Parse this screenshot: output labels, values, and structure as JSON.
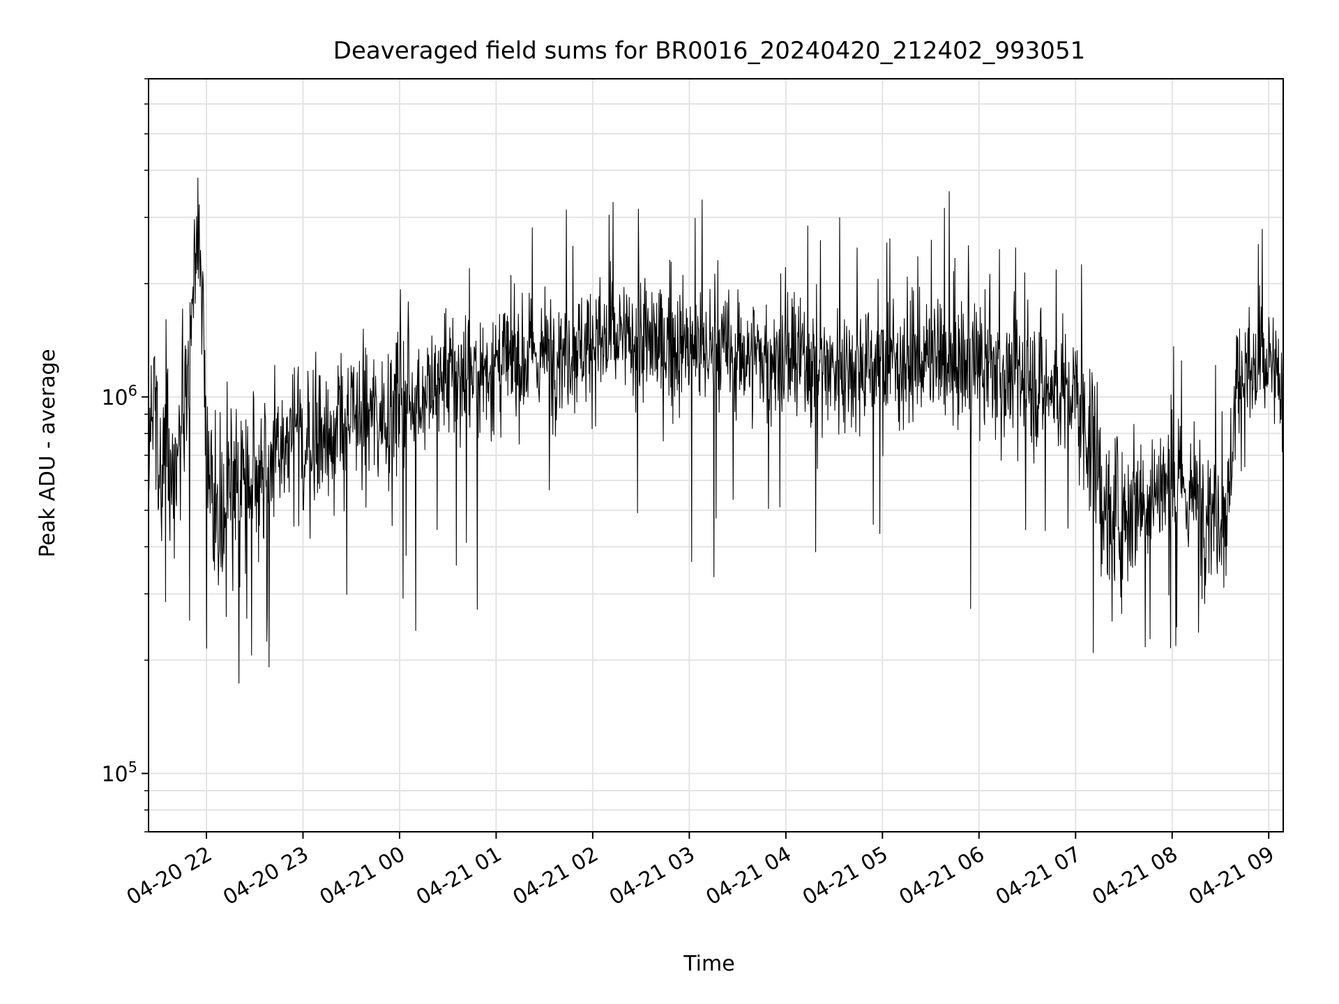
{
  "chart_data": {
    "type": "line",
    "title": "Deaveraged field sums for BR0016_20240420_212402_993051",
    "xlabel": "Time",
    "ylabel": "Peak ADU - average",
    "xlim": [
      "2024-04-20 21:24:02",
      "2024-04-21 09:09:00"
    ],
    "ylim": [
      70000,
      7000000
    ],
    "yscale": "log",
    "grid": true,
    "line_color": "#000000",
    "x_ticks": [
      "04-20 22",
      "04-20 23",
      "04-21 00",
      "04-21 01",
      "04-21 02",
      "04-21 03",
      "04-21 04",
      "04-21 05",
      "04-21 06",
      "04-21 07",
      "04-21 08",
      "04-21 09"
    ],
    "x_tick_times": [
      "2024-04-20 22:00",
      "2024-04-20 23:00",
      "2024-04-21 00:00",
      "2024-04-21 01:00",
      "2024-04-21 02:00",
      "2024-04-21 03:00",
      "2024-04-21 04:00",
      "2024-04-21 05:00",
      "2024-04-21 06:00",
      "2024-04-21 07:00",
      "2024-04-21 08:00",
      "2024-04-21 09:00"
    ],
    "y_ticks": [
      {
        "value": 100000,
        "base": "10",
        "exp": "5"
      },
      {
        "value": 1000000,
        "base": "10",
        "exp": "6"
      }
    ],
    "series": [
      {
        "values_note_free": true,
        "x": [
          "2024-04-20 21:24",
          "2024-04-20 21:40",
          "2024-04-20 21:50",
          "2024-04-20 21:55",
          "2024-04-20 22:00",
          "2024-04-20 22:10",
          "2024-04-20 22:30",
          "2024-04-20 23:00",
          "2024-04-20 23:30",
          "2024-04-21 00:00",
          "2024-04-21 00:30",
          "2024-04-21 01:00",
          "2024-04-21 01:30",
          "2024-04-21 02:00",
          "2024-04-21 02:30",
          "2024-04-21 03:00",
          "2024-04-21 03:30",
          "2024-04-21 04:00",
          "2024-04-21 04:30",
          "2024-04-21 05:00",
          "2024-04-21 05:30",
          "2024-04-21 06:00",
          "2024-04-21 06:30",
          "2024-04-21 07:00",
          "2024-04-21 07:10",
          "2024-04-21 07:20",
          "2024-04-21 07:40",
          "2024-04-21 08:00",
          "2024-04-21 08:20",
          "2024-04-21 08:35",
          "2024-04-21 08:40",
          "2024-04-21 09:00",
          "2024-04-21 09:09"
        ],
        "values": [
          1000000,
          600000,
          1300000,
          3000000,
          600000,
          500000,
          650000,
          750000,
          850000,
          950000,
          1100000,
          1200000,
          1300000,
          1400000,
          1400000,
          1350000,
          1300000,
          1250000,
          1200000,
          1250000,
          1250000,
          1200000,
          1100000,
          1000000,
          750000,
          450000,
          550000,
          580000,
          520000,
          500000,
          1100000,
          1200000,
          1000000
        ],
        "spread": [
          1.9,
          2.2,
          2.0,
          1.7,
          2.0,
          2.0,
          1.8,
          1.8,
          1.75,
          1.7,
          1.7,
          1.65,
          1.65,
          1.65,
          1.65,
          1.65,
          1.65,
          1.65,
          1.65,
          1.65,
          1.65,
          1.7,
          1.7,
          1.7,
          1.9,
          2.0,
          1.8,
          1.7,
          1.8,
          1.8,
          1.7,
          1.7,
          1.7
        ]
      }
    ]
  }
}
